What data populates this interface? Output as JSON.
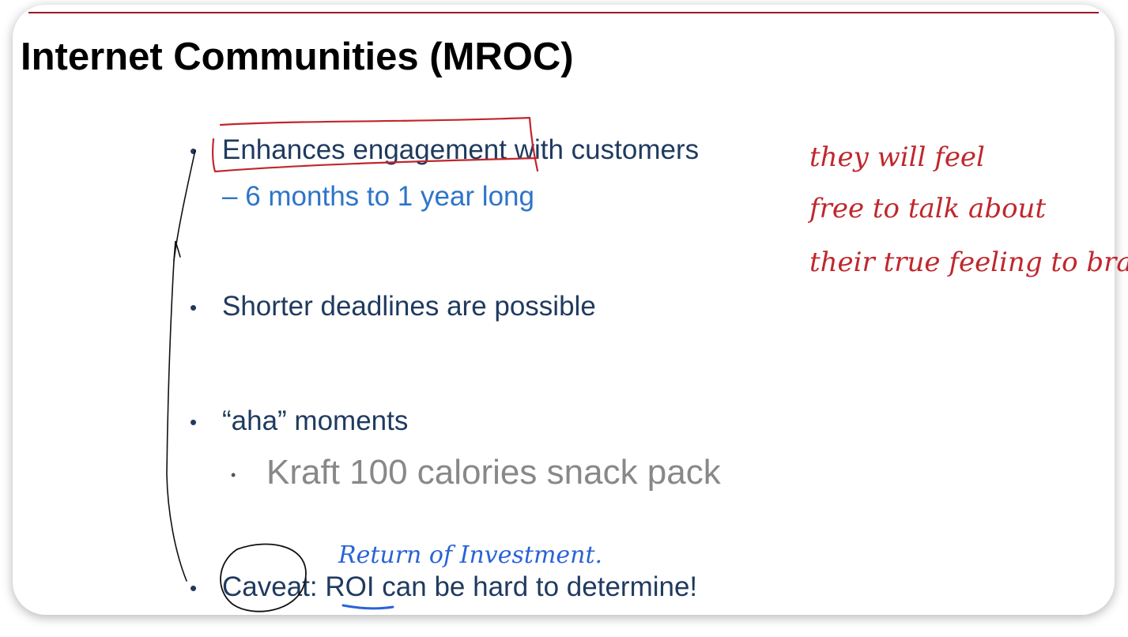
{
  "slide": {
    "title": "Internet Communities (MROC)",
    "bullets": [
      {
        "text": "Enhances engagement with customers",
        "sub": "– 6 months to 1 year long"
      },
      {
        "text": "Shorter deadlines are possible"
      },
      {
        "text": "“aha” moments",
        "sub": "Kraft 100 calories snack pack"
      },
      {
        "text": "Caveat: ROI can be hard to determine!"
      }
    ],
    "bullet_glyph": "•",
    "sub_glyph": "•"
  },
  "annotations": {
    "red_note_lines": [
      "they will feel",
      "free to talk about",
      "their true feeling to brand."
    ],
    "blue_note": "Return of Investment.",
    "colors": {
      "red_ink": "#c0272d",
      "blue_ink": "#2a63d6",
      "black_ink": "#111111"
    }
  }
}
